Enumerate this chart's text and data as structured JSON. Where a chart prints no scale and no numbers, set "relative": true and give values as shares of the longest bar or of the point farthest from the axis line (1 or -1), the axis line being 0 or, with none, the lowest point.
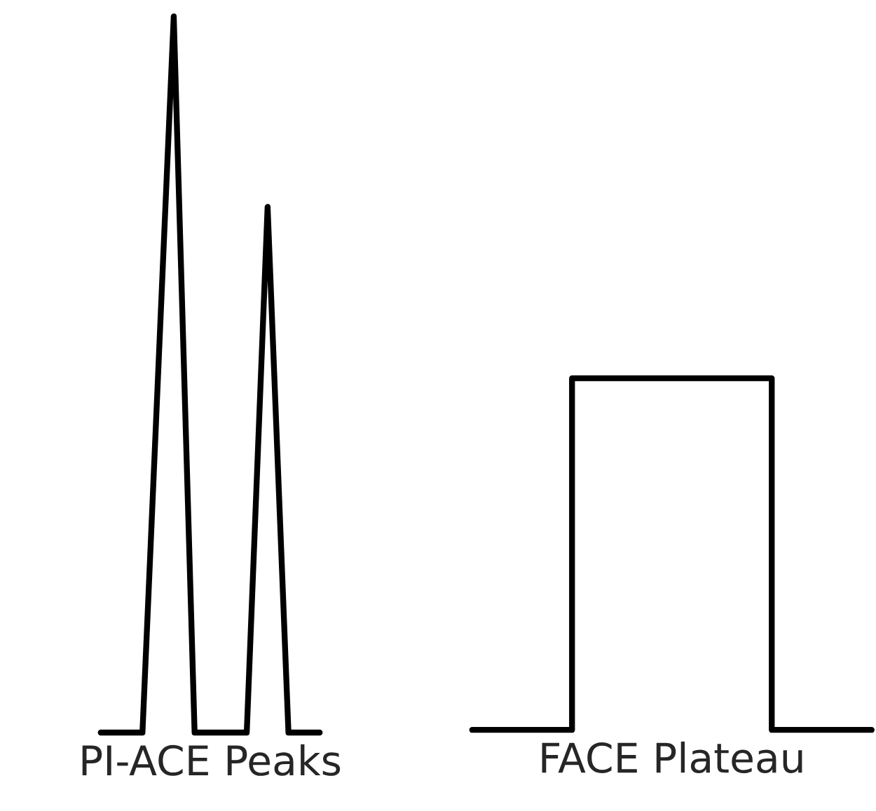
{
  "chart_data": [
    {
      "type": "line",
      "xlabel": "PI-ACE Peaks",
      "relative": true,
      "color": "#000000",
      "categories": [
        null,
        null,
        null,
        null,
        null,
        null,
        null,
        null,
        null,
        null,
        null,
        null,
        null,
        null,
        null,
        null,
        null,
        null,
        null,
        null,
        null,
        null
      ],
      "values": [
        0,
        0,
        0,
        0,
        0,
        0.333,
        0.667,
        1,
        0.5,
        0,
        0,
        0,
        0,
        0,
        0,
        0.367,
        0.734,
        0.367,
        0,
        0,
        0,
        0
      ]
    },
    {
      "type": "step",
      "xlabel": "FACE Plateau",
      "relative": true,
      "color": "#000000",
      "categories": [
        null,
        null,
        null,
        null,
        null,
        null,
        null,
        null,
        null,
        null,
        null,
        null,
        null
      ],
      "values": [
        0,
        0,
        0,
        1,
        1,
        1,
        1,
        1,
        1,
        0,
        0,
        0,
        0
      ]
    }
  ]
}
